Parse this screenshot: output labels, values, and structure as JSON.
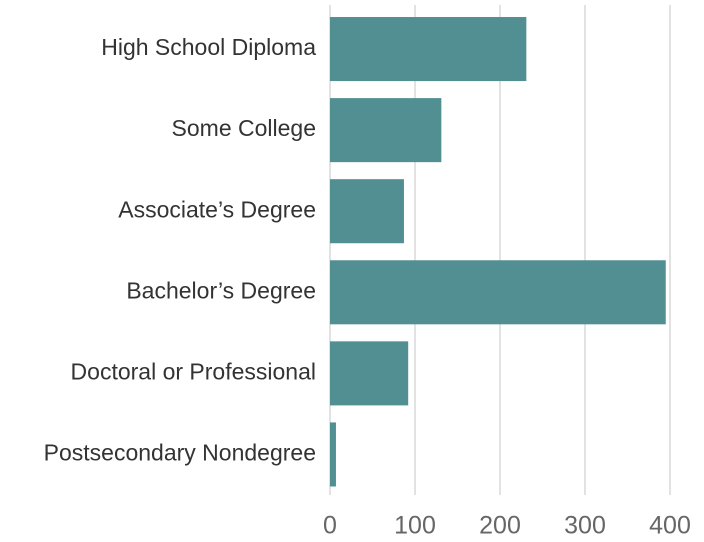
{
  "chart_data": {
    "type": "hbar",
    "categories": [
      "High School Diploma",
      "Some College",
      "Associate’s Degree",
      "Bachelor’s Degree",
      "Doctoral or Professional",
      "Postsecondary Nondegree"
    ],
    "values": [
      231,
      131,
      87,
      395,
      92,
      7
    ],
    "color": "#528f93",
    "xlim": [
      0,
      400
    ],
    "xticks": [
      0,
      100,
      200,
      300,
      400
    ],
    "grid": true
  }
}
